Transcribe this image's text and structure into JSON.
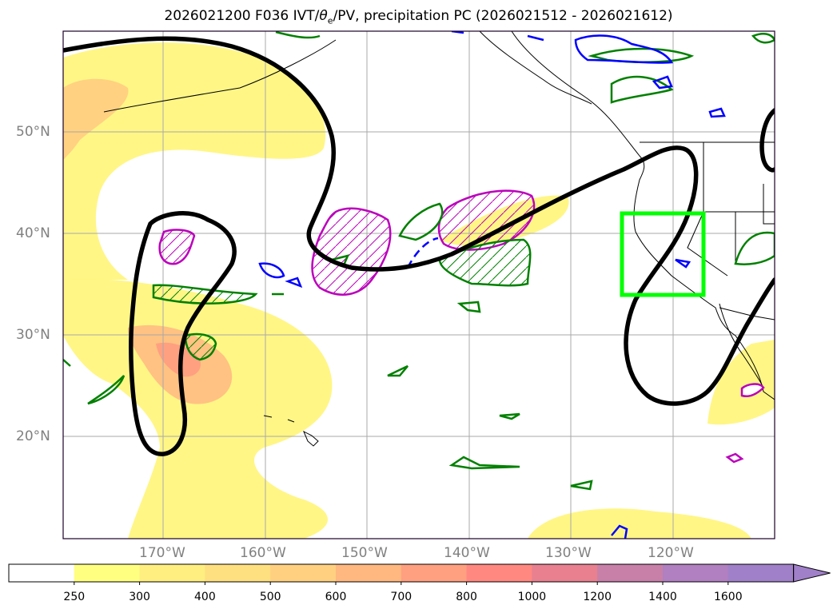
{
  "title": {
    "run": "2026021200 F036 IVT/",
    "theta": "θ",
    "sub": "e",
    "rest": "/PV, precipitation PC (2026021512 - 2026021612)"
  },
  "map": {
    "latitude_labels": [
      "50°N",
      "40°N",
      "30°N",
      "20°N"
    ],
    "longitude_labels": [
      "170°W",
      "160°W",
      "150°W",
      "140°W",
      "130°W",
      "120°W"
    ],
    "highlight_box_color": "#00ff00",
    "pv_contour_color": "#000000",
    "theta_e_positive_color": "#008000",
    "theta_e_negative_color": "#0000ff",
    "precip_hatch_color": "#bb00bb"
  },
  "colorbar": {
    "levels": [
      "250",
      "300",
      "400",
      "500",
      "600",
      "700",
      "800",
      "1000",
      "1200",
      "1400",
      "1600"
    ],
    "colors": [
      "#ffffff",
      "#ffff80",
      "#ffef80",
      "#ffe080",
      "#ffd080",
      "#ffb880",
      "#ffa080",
      "#ff8880",
      "#e88090",
      "#c880a8",
      "#b080c0",
      "#a080c8"
    ],
    "extend": "max"
  }
}
